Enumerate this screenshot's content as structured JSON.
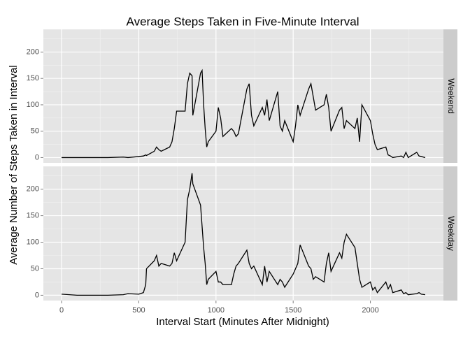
{
  "chart_data": {
    "type": "line",
    "facets": true,
    "title": "Average Steps Taken in Five-Minute Interval",
    "xlabel": "Interval Start (Minutes After Midnight)",
    "ylabel": "Average Number of Steps Taken in Interval",
    "x": [
      0,
      100,
      200,
      300,
      400,
      430,
      500,
      530,
      545,
      550,
      600,
      615,
      630,
      645,
      700,
      715,
      730,
      745,
      800,
      815,
      830,
      845,
      850,
      900,
      910,
      920,
      930,
      940,
      950,
      1000,
      1015,
      1030,
      1045,
      1100,
      1115,
      1130,
      1145,
      1200,
      1215,
      1230,
      1245,
      1300,
      1315,
      1330,
      1345,
      1400,
      1415,
      1430,
      1445,
      1500,
      1515,
      1530,
      1545,
      1600,
      1615,
      1630,
      1645,
      1700,
      1715,
      1730,
      1745,
      1800,
      1815,
      1830,
      1845,
      1900,
      1915,
      1930,
      1945,
      2000,
      2015,
      2030,
      2045,
      2100,
      2115,
      2130,
      2145,
      2200,
      2215,
      2230,
      2245,
      2300,
      2315,
      2330,
      2355
    ],
    "series": [
      {
        "name": "Weekend",
        "color": "#000000",
        "values": [
          0,
          0,
          0,
          0,
          1,
          0,
          2,
          3,
          5,
          4,
          12,
          20,
          15,
          12,
          20,
          30,
          55,
          88,
          88,
          140,
          160,
          155,
          80,
          160,
          165,
          100,
          55,
          20,
          30,
          50,
          95,
          75,
          40,
          55,
          50,
          40,
          45,
          130,
          140,
          80,
          60,
          95,
          80,
          110,
          70,
          125,
          60,
          50,
          70,
          30,
          60,
          100,
          80,
          130,
          140,
          115,
          90,
          100,
          120,
          95,
          50,
          90,
          95,
          55,
          70,
          55,
          75,
          30,
          100,
          70,
          45,
          25,
          15,
          20,
          5,
          3,
          0,
          3,
          0,
          10,
          0,
          10,
          3,
          2,
          0
        ]
      },
      {
        "name": "Weekday",
        "color": "#000000",
        "values": [
          2,
          0,
          0,
          0,
          1,
          3,
          2,
          5,
          20,
          50,
          65,
          75,
          55,
          60,
          55,
          60,
          80,
          65,
          100,
          180,
          200,
          230,
          210,
          170,
          130,
          90,
          60,
          20,
          30,
          45,
          25,
          25,
          20,
          20,
          40,
          55,
          60,
          85,
          60,
          50,
          55,
          20,
          55,
          25,
          45,
          20,
          30,
          25,
          15,
          40,
          50,
          60,
          95,
          55,
          50,
          30,
          35,
          25,
          60,
          80,
          45,
          80,
          70,
          100,
          115,
          90,
          60,
          30,
          15,
          25,
          10,
          15,
          5,
          25,
          12,
          20,
          5,
          10,
          3,
          5,
          1,
          3,
          5,
          2,
          1
        ]
      }
    ],
    "xlim": [
      -118,
      2473
    ],
    "xticks": [
      0,
      500,
      1000,
      1500,
      2000
    ],
    "x_minor_ticks": [
      250,
      750,
      1250,
      1750,
      2250
    ],
    "ylim": [
      -10,
      243
    ],
    "yticks": [
      0,
      50,
      100,
      150,
      200
    ],
    "y_minor_ticks": [
      25,
      75,
      125,
      175,
      225
    ],
    "grid": true
  }
}
